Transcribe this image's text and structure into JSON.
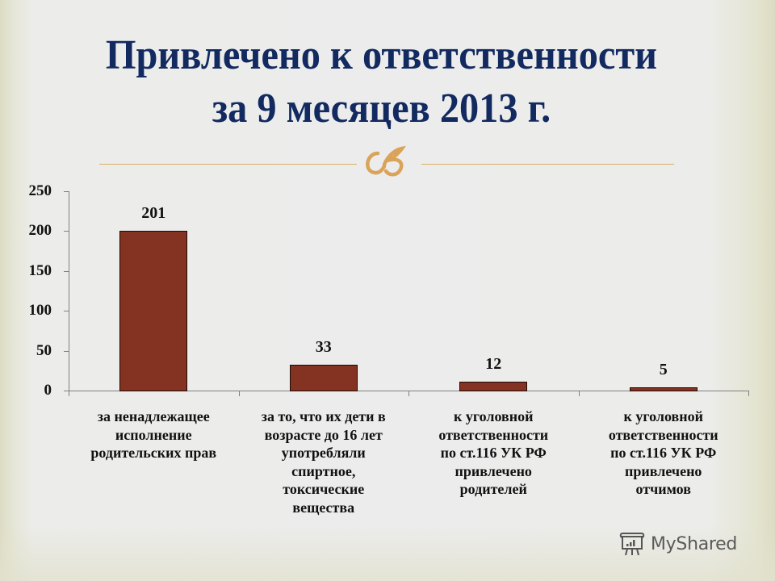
{
  "slide": {
    "title_line1": "Привлечено к ответственности",
    "title_line2": "за 9 месяцев 2013 г.",
    "ornament_icon": "decorative-flourish",
    "accent_color": "#d9b068",
    "title_color": "#122a60",
    "bar_color": "#843222"
  },
  "watermark": {
    "icon": "presentation-board-icon",
    "text": "MyShared"
  },
  "chart_data": {
    "type": "bar",
    "title": "Привлечено к ответственности за 9 месяцев 2013 г.",
    "xlabel": "",
    "ylabel": "",
    "ylim": [
      0,
      250
    ],
    "yticks": [
      "0",
      "50",
      "100",
      "150",
      "200",
      "250"
    ],
    "grid": false,
    "legend": "none",
    "categories": [
      "за ненадлежащее исполнение родительских прав",
      "за то, что их дети в возрасте до 16 лет употребляли спиртное, токсические вещества",
      "к уголовной ответственности по ст.116 УК РФ привлечено родителей",
      "к уголовной ответственности по ст.116 УК РФ привлечено отчимов"
    ],
    "category_lines": [
      [
        "за ненадлежащее",
        "исполнение",
        "родительских прав"
      ],
      [
        "за то, что их дети в",
        "возрасте до 16 лет",
        "употребляли",
        "спиртное,",
        "токсические",
        "вещества"
      ],
      [
        "к уголовной",
        "ответственности",
        "по ст.116 УК РФ",
        "привлечено",
        "родителей"
      ],
      [
        "к уголовной",
        "ответственности",
        "по ст.116 УК РФ",
        "привлечено",
        "отчимов"
      ]
    ],
    "values": [
      201,
      33,
      12,
      5
    ],
    "value_labels": [
      "201",
      "33",
      "12",
      "5"
    ]
  }
}
